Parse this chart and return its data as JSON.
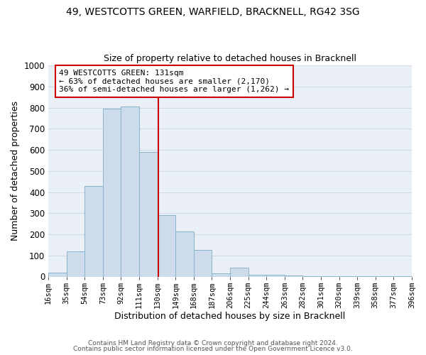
{
  "title": "49, WESTCOTTS GREEN, WARFIELD, BRACKNELL, RG42 3SG",
  "subtitle": "Size of property relative to detached houses in Bracknell",
  "xlabel": "Distribution of detached houses by size in Bracknell",
  "ylabel": "Number of detached properties",
  "bar_color": "#ccdcea",
  "bar_edge_color": "#8ab4cc",
  "bin_edges": [
    16,
    35,
    54,
    73,
    92,
    111,
    130,
    149,
    168,
    187,
    206,
    225,
    244,
    263,
    282,
    301,
    320,
    339,
    358,
    377,
    396
  ],
  "bar_heights": [
    18,
    120,
    430,
    795,
    805,
    590,
    290,
    215,
    125,
    15,
    42,
    10,
    8,
    5,
    3,
    2,
    2,
    2,
    1,
    2
  ],
  "vline_x": 131,
  "vline_color": "#cc0000",
  "xlim": [
    16,
    396
  ],
  "ylim": [
    0,
    1000
  ],
  "yticks": [
    0,
    100,
    200,
    300,
    400,
    500,
    600,
    700,
    800,
    900,
    1000
  ],
  "xtick_labels": [
    "16sqm",
    "35sqm",
    "54sqm",
    "73sqm",
    "92sqm",
    "111sqm",
    "130sqm",
    "149sqm",
    "168sqm",
    "187sqm",
    "206sqm",
    "225sqm",
    "244sqm",
    "263sqm",
    "282sqm",
    "301sqm",
    "320sqm",
    "339sqm",
    "358sqm",
    "377sqm",
    "396sqm"
  ],
  "annotation_title": "49 WESTCOTTS GREEN: 131sqm",
  "annotation_line1": "← 63% of detached houses are smaller (2,170)",
  "annotation_line2": "36% of semi-detached houses are larger (1,262) →",
  "annotation_box_color": "#ffffff",
  "annotation_box_edge": "#cc0000",
  "footer1": "Contains HM Land Registry data © Crown copyright and database right 2024.",
  "footer2": "Contains public sector information licensed under the Open Government Licence v3.0.",
  "grid_color": "#d0dde8",
  "background_color": "#eaf0f6"
}
